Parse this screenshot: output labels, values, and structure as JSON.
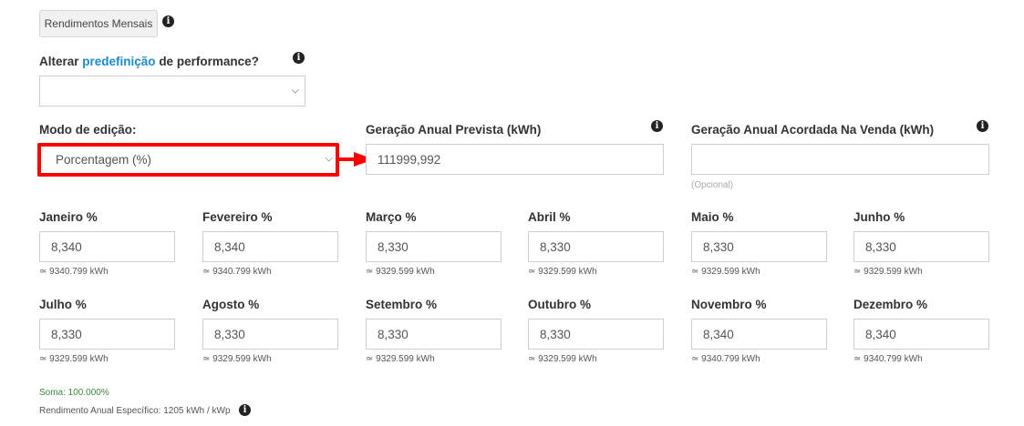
{
  "header": {
    "button_label": "Rendimentos Mensais"
  },
  "preset": {
    "label_prefix": "Alterar ",
    "label_link": "predefinição",
    "label_suffix": " de performance?",
    "value": ""
  },
  "edit_mode": {
    "label": "Modo de edição:",
    "value": "Porcentagem (%)"
  },
  "annual_forecast": {
    "label": "Geração Anual Prevista (kWh)",
    "value": "111999,992"
  },
  "annual_agreed": {
    "label": "Geração Anual Acordada Na Venda (kWh)",
    "value": "",
    "hint": "(Opcional)"
  },
  "months": [
    {
      "label": "Janeiro %",
      "value": "8,340",
      "kwh": "≃ 9340.799 kWh"
    },
    {
      "label": "Fevereiro %",
      "value": "8,340",
      "kwh": "≃ 9340.799 kWh"
    },
    {
      "label": "Março %",
      "value": "8,330",
      "kwh": "≃ 9329.599 kWh"
    },
    {
      "label": "Abril %",
      "value": "8,330",
      "kwh": "≃ 9329.599 kWh"
    },
    {
      "label": "Maio %",
      "value": "8,330",
      "kwh": "≃ 9329.599 kWh"
    },
    {
      "label": "Junho %",
      "value": "8,330",
      "kwh": "≃ 9329.599 kWh"
    },
    {
      "label": "Julho %",
      "value": "8,330",
      "kwh": "≃ 9329.599 kWh"
    },
    {
      "label": "Agosto %",
      "value": "8,330",
      "kwh": "≃ 9329.599 kWh"
    },
    {
      "label": "Setembro %",
      "value": "8,330",
      "kwh": "≃ 9329.599 kWh"
    },
    {
      "label": "Outubro %",
      "value": "8,330",
      "kwh": "≃ 9329.599 kWh"
    },
    {
      "label": "Novembro %",
      "value": "8,340",
      "kwh": "≃ 9340.799 kWh"
    },
    {
      "label": "Dezembro %",
      "value": "8,340",
      "kwh": "≃ 9340.799 kWh"
    }
  ],
  "footer": {
    "sum": "Soma: 100.000%",
    "specific_yield": "Rendimento Anual Específico: 1205 kWh / kWp"
  },
  "colors": {
    "highlight": "#ff0000",
    "link": "#1a8bd0",
    "sum": "#3c8a3c"
  },
  "icons": {
    "info": "info-circle-icon",
    "chevron": "chevron-down-icon",
    "arrow": "arrow-right-icon"
  }
}
